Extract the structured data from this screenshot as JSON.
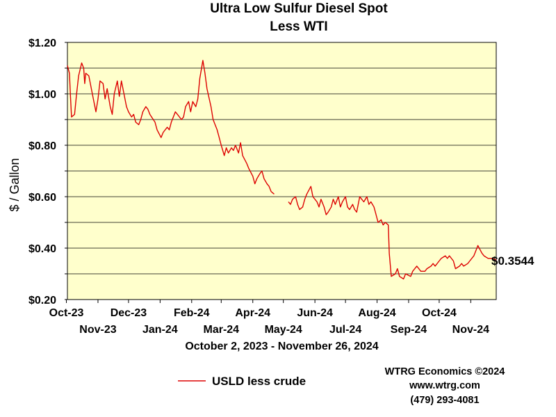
{
  "chart_data": {
    "type": "line",
    "title": "Ultra Low Sulfur Diesel Spot",
    "subtitle": "Less WTI",
    "ylabel": "$ / Gallon",
    "xlabel": "October 2, 2023 - November 26, 2024",
    "ylim": [
      0.2,
      1.2
    ],
    "y_ticks": [
      0.2,
      0.3,
      0.4,
      0.5,
      0.6,
      0.7,
      0.8,
      0.9,
      1.0,
      1.1,
      1.2
    ],
    "y_tick_labels": [
      "$0.20",
      "$0.40",
      "$0.60",
      "$0.80",
      "$1.00",
      "$1.20"
    ],
    "y_tick_label_values": [
      0.2,
      0.4,
      0.6,
      0.8,
      1.0,
      1.2
    ],
    "x_range": [
      "2023-10-02",
      "2024-11-26"
    ],
    "x_ticks_upper": [
      {
        "label": "Oct-23",
        "date": "2023-10-01"
      },
      {
        "label": "Dec-23",
        "date": "2023-12-01"
      },
      {
        "label": "Feb-24",
        "date": "2024-02-01"
      },
      {
        "label": "Apr-24",
        "date": "2024-04-01"
      },
      {
        "label": "Jun-24",
        "date": "2024-06-01"
      },
      {
        "label": "Aug-24",
        "date": "2024-08-01"
      },
      {
        "label": "Oct-24",
        "date": "2024-10-01"
      }
    ],
    "x_ticks_lower": [
      {
        "label": "Nov-23",
        "date": "2023-11-01"
      },
      {
        "label": "Jan-24",
        "date": "2024-01-01"
      },
      {
        "label": "Mar-24",
        "date": "2024-03-01"
      },
      {
        "label": "May-24",
        "date": "2024-05-01"
      },
      {
        "label": "Jul-24",
        "date": "2024-07-01"
      },
      {
        "label": "Sep-24",
        "date": "2024-09-01"
      },
      {
        "label": "Nov-24",
        "date": "2024-11-01"
      }
    ],
    "grid": true,
    "series": [
      {
        "name": "USLD less crude",
        "color": "#dd0000",
        "segments": [
          [
            [
              "2023-10-02",
              1.11
            ],
            [
              "2023-10-04",
              1.08
            ],
            [
              "2023-10-05",
              0.99
            ],
            [
              "2023-10-06",
              0.91
            ],
            [
              "2023-10-09",
              0.92
            ],
            [
              "2023-10-11",
              1.0
            ],
            [
              "2023-10-13",
              1.07
            ],
            [
              "2023-10-16",
              1.12
            ],
            [
              "2023-10-18",
              1.1
            ],
            [
              "2023-10-19",
              1.04
            ],
            [
              "2023-10-20",
              1.08
            ],
            [
              "2023-10-23",
              1.07
            ],
            [
              "2023-10-25",
              1.03
            ],
            [
              "2023-10-27",
              0.99
            ],
            [
              "2023-10-30",
              0.93
            ],
            [
              "2023-11-01",
              0.98
            ],
            [
              "2023-11-03",
              1.05
            ],
            [
              "2023-11-06",
              1.04
            ],
            [
              "2023-11-08",
              0.98
            ],
            [
              "2023-11-10",
              1.02
            ],
            [
              "2023-11-13",
              0.95
            ],
            [
              "2023-11-15",
              0.92
            ],
            [
              "2023-11-17",
              1.0
            ],
            [
              "2023-11-20",
              1.05
            ],
            [
              "2023-11-22",
              0.99
            ],
            [
              "2023-11-24",
              1.05
            ],
            [
              "2023-11-27",
              0.99
            ],
            [
              "2023-11-29",
              0.95
            ],
            [
              "2023-12-01",
              0.93
            ],
            [
              "2023-12-04",
              0.91
            ],
            [
              "2023-12-06",
              0.92
            ],
            [
              "2023-12-08",
              0.89
            ],
            [
              "2023-12-11",
              0.88
            ],
            [
              "2023-12-13",
              0.9
            ],
            [
              "2023-12-15",
              0.93
            ],
            [
              "2023-12-18",
              0.95
            ],
            [
              "2023-12-20",
              0.94
            ],
            [
              "2023-12-22",
              0.92
            ],
            [
              "2023-12-27",
              0.89
            ],
            [
              "2023-12-29",
              0.86
            ],
            [
              "2024-01-02",
              0.83
            ],
            [
              "2024-01-04",
              0.85
            ],
            [
              "2024-01-08",
              0.87
            ],
            [
              "2024-01-10",
              0.86
            ],
            [
              "2024-01-12",
              0.89
            ],
            [
              "2024-01-16",
              0.93
            ],
            [
              "2024-01-18",
              0.92
            ],
            [
              "2024-01-22",
              0.9
            ],
            [
              "2024-01-24",
              0.91
            ],
            [
              "2024-01-26",
              0.95
            ],
            [
              "2024-01-29",
              0.97
            ],
            [
              "2024-01-31",
              0.93
            ],
            [
              "2024-02-02",
              0.97
            ],
            [
              "2024-02-05",
              0.95
            ],
            [
              "2024-02-07",
              0.98
            ],
            [
              "2024-02-09",
              1.06
            ],
            [
              "2024-02-12",
              1.13
            ],
            [
              "2024-02-14",
              1.08
            ],
            [
              "2024-02-16",
              1.02
            ],
            [
              "2024-02-20",
              0.95
            ],
            [
              "2024-02-22",
              0.9
            ],
            [
              "2024-02-26",
              0.86
            ],
            [
              "2024-02-28",
              0.83
            ],
            [
              "2024-03-01",
              0.8
            ],
            [
              "2024-03-04",
              0.76
            ],
            [
              "2024-03-06",
              0.79
            ],
            [
              "2024-03-08",
              0.77
            ],
            [
              "2024-03-11",
              0.79
            ],
            [
              "2024-03-13",
              0.78
            ],
            [
              "2024-03-15",
              0.8
            ],
            [
              "2024-03-18",
              0.77
            ],
            [
              "2024-03-20",
              0.81
            ],
            [
              "2024-03-22",
              0.76
            ],
            [
              "2024-03-26",
              0.73
            ],
            [
              "2024-03-28",
              0.71
            ],
            [
              "2024-04-01",
              0.68
            ],
            [
              "2024-04-03",
              0.65
            ],
            [
              "2024-04-05",
              0.67
            ],
            [
              "2024-04-08",
              0.69
            ],
            [
              "2024-04-10",
              0.7
            ],
            [
              "2024-04-12",
              0.67
            ],
            [
              "2024-04-15",
              0.65
            ],
            [
              "2024-04-17",
              0.64
            ],
            [
              "2024-04-19",
              0.62
            ],
            [
              "2024-04-22",
              0.61
            ]
          ],
          [
            [
              "2024-05-06",
              0.58
            ],
            [
              "2024-05-08",
              0.57
            ],
            [
              "2024-05-10",
              0.59
            ],
            [
              "2024-05-13",
              0.6
            ],
            [
              "2024-05-15",
              0.57
            ],
            [
              "2024-05-17",
              0.55
            ],
            [
              "2024-05-20",
              0.56
            ],
            [
              "2024-05-22",
              0.59
            ],
            [
              "2024-05-24",
              0.61
            ],
            [
              "2024-05-28",
              0.64
            ],
            [
              "2024-05-30",
              0.6
            ],
            [
              "2024-06-03",
              0.58
            ],
            [
              "2024-06-05",
              0.56
            ],
            [
              "2024-06-07",
              0.59
            ],
            [
              "2024-06-10",
              0.56
            ],
            [
              "2024-06-12",
              0.53
            ],
            [
              "2024-06-14",
              0.54
            ],
            [
              "2024-06-17",
              0.56
            ],
            [
              "2024-06-19",
              0.59
            ],
            [
              "2024-06-21",
              0.57
            ],
            [
              "2024-06-24",
              0.6
            ],
            [
              "2024-06-26",
              0.56
            ],
            [
              "2024-06-28",
              0.58
            ],
            [
              "2024-07-01",
              0.6
            ],
            [
              "2024-07-03",
              0.56
            ],
            [
              "2024-07-05",
              0.55
            ],
            [
              "2024-07-08",
              0.57
            ],
            [
              "2024-07-10",
              0.55
            ],
            [
              "2024-07-12",
              0.54
            ],
            [
              "2024-07-15",
              0.6
            ],
            [
              "2024-07-17",
              0.59
            ],
            [
              "2024-07-19",
              0.58
            ],
            [
              "2024-07-22",
              0.6
            ],
            [
              "2024-07-24",
              0.57
            ],
            [
              "2024-07-26",
              0.58
            ],
            [
              "2024-07-29",
              0.56
            ],
            [
              "2024-07-31",
              0.53
            ],
            [
              "2024-08-02",
              0.5
            ],
            [
              "2024-08-05",
              0.51
            ],
            [
              "2024-08-07",
              0.49
            ],
            [
              "2024-08-09",
              0.5
            ],
            [
              "2024-08-12",
              0.49
            ],
            [
              "2024-08-13",
              0.38
            ],
            [
              "2024-08-15",
              0.29
            ],
            [
              "2024-08-19",
              0.3
            ],
            [
              "2024-08-21",
              0.32
            ],
            [
              "2024-08-23",
              0.29
            ],
            [
              "2024-08-27",
              0.28
            ],
            [
              "2024-08-29",
              0.3
            ],
            [
              "2024-09-03",
              0.29
            ],
            [
              "2024-09-05",
              0.31
            ],
            [
              "2024-09-09",
              0.33
            ],
            [
              "2024-09-11",
              0.32
            ],
            [
              "2024-09-13",
              0.31
            ],
            [
              "2024-09-17",
              0.31
            ],
            [
              "2024-09-19",
              0.32
            ],
            [
              "2024-09-23",
              0.33
            ],
            [
              "2024-09-25",
              0.34
            ],
            [
              "2024-09-27",
              0.33
            ],
            [
              "2024-10-01",
              0.35
            ],
            [
              "2024-10-03",
              0.36
            ],
            [
              "2024-10-07",
              0.37
            ],
            [
              "2024-10-09",
              0.36
            ],
            [
              "2024-10-11",
              0.37
            ],
            [
              "2024-10-15",
              0.35
            ],
            [
              "2024-10-17",
              0.32
            ],
            [
              "2024-10-21",
              0.33
            ],
            [
              "2024-10-23",
              0.34
            ],
            [
              "2024-10-25",
              0.33
            ],
            [
              "2024-10-29",
              0.34
            ],
            [
              "2024-10-31",
              0.35
            ],
            [
              "2024-11-04",
              0.37
            ],
            [
              "2024-11-06",
              0.39
            ],
            [
              "2024-11-08",
              0.41
            ],
            [
              "2024-11-12",
              0.38
            ],
            [
              "2024-11-14",
              0.37
            ],
            [
              "2024-11-18",
              0.36
            ],
            [
              "2024-11-22",
              0.36
            ],
            [
              "2024-11-26",
              0.3544
            ]
          ]
        ]
      }
    ],
    "last_value_label": "$0.3544",
    "legend": {
      "position": "bottom-left",
      "label": "USLD less crude"
    },
    "colors": {
      "plot_background": "#ffffcc",
      "line": "#dd0000",
      "grid": "#000000"
    }
  },
  "footer": {
    "company": "WTRG Economics ©2024",
    "website": "www.wtrg.com",
    "phone": "(479) 293-4081"
  }
}
